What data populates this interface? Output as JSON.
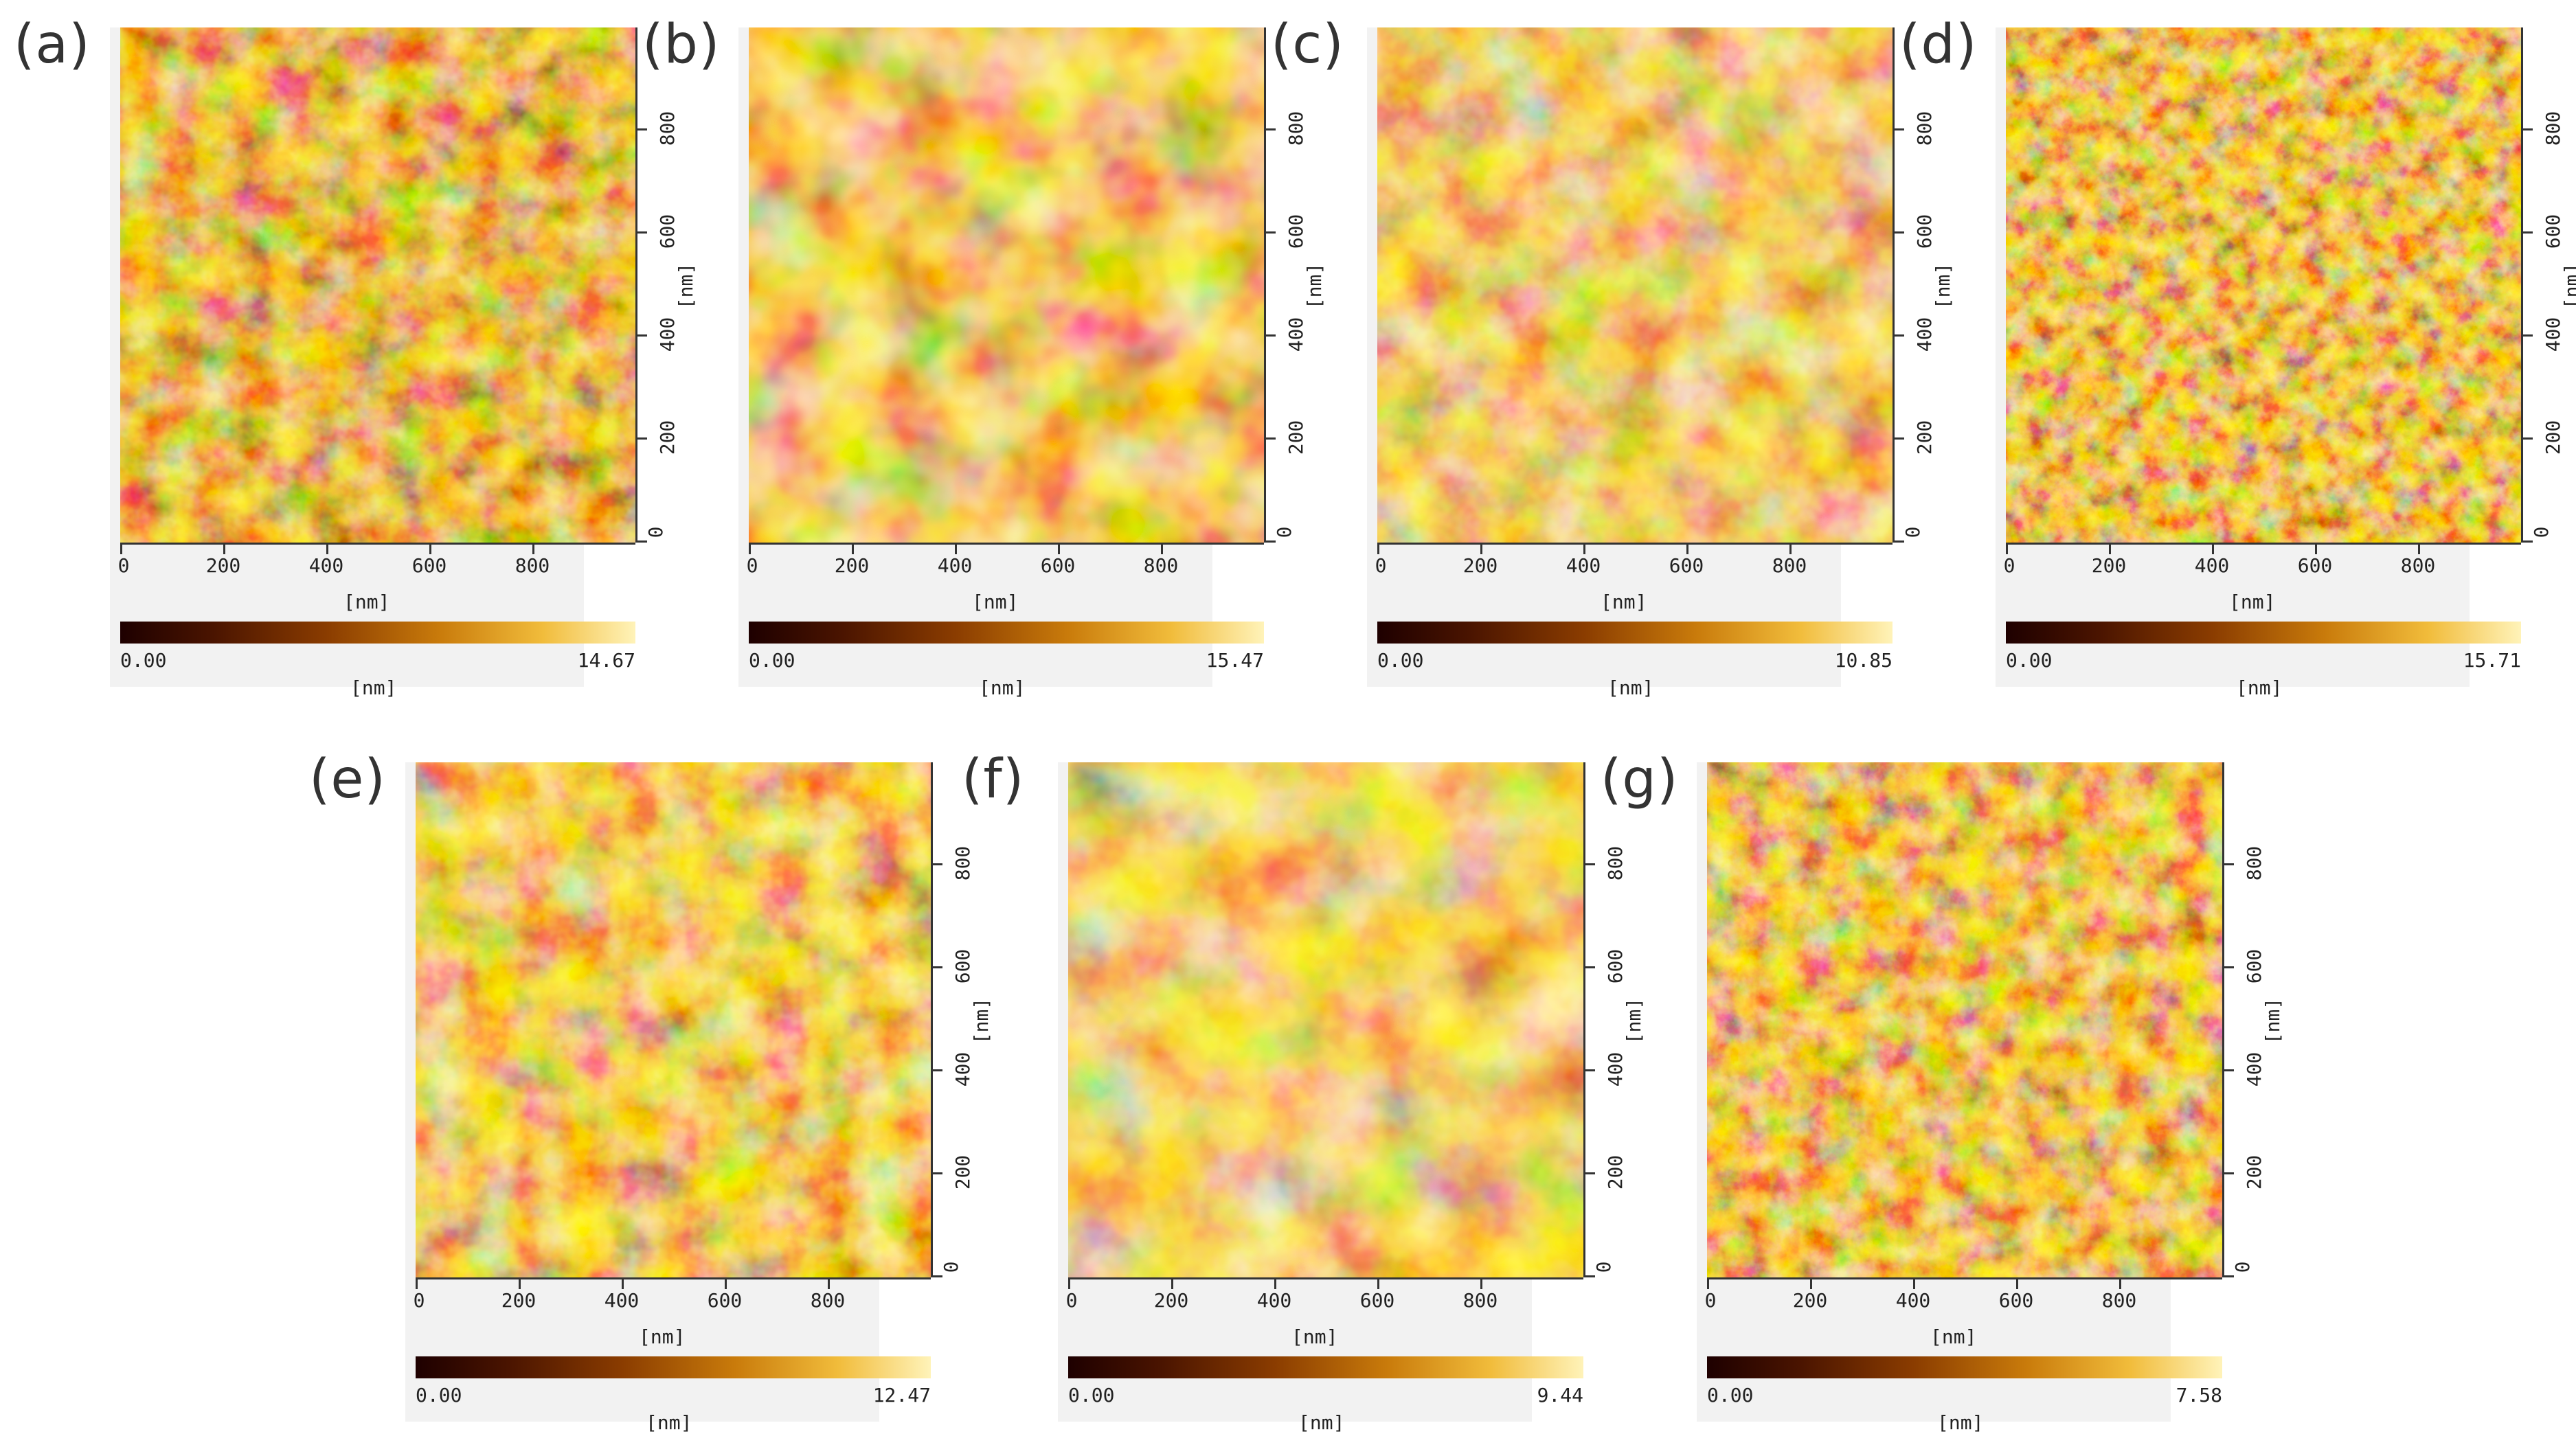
{
  "figure": {
    "panels": [
      {
        "label": "(a)",
        "x_ticks": [
          "0",
          "200",
          "400",
          "600",
          "800"
        ],
        "y_ticks": [
          "0",
          "200",
          "400",
          "600",
          "800"
        ],
        "x_unit": "[nm]",
        "y_unit": "[nm]",
        "scale_min": "0.00",
        "scale_max": "14.67",
        "scale_unit": "[nm]"
      },
      {
        "label": "(b)",
        "x_ticks": [
          "0",
          "200",
          "400",
          "600",
          "800"
        ],
        "y_ticks": [
          "0",
          "200",
          "400",
          "600",
          "800"
        ],
        "x_unit": "[nm]",
        "y_unit": "[nm]",
        "scale_min": "0.00",
        "scale_max": "15.47",
        "scale_unit": "[nm]"
      },
      {
        "label": "(c)",
        "x_ticks": [
          "0",
          "200",
          "400",
          "600",
          "800"
        ],
        "y_ticks": [
          "0",
          "200",
          "400",
          "600",
          "800"
        ],
        "x_unit": "[nm]",
        "y_unit": "[nm]",
        "scale_min": "0.00",
        "scale_max": "10.85",
        "scale_unit": "[nm]"
      },
      {
        "label": "(d)",
        "x_ticks": [
          "0",
          "200",
          "400",
          "600",
          "800"
        ],
        "y_ticks": [
          "0",
          "200",
          "400",
          "600",
          "800"
        ],
        "x_unit": "[nm]",
        "y_unit": "[nm]",
        "scale_min": "0.00",
        "scale_max": "15.71",
        "scale_unit": "[nm]"
      },
      {
        "label": "(e)",
        "x_ticks": [
          "0",
          "200",
          "400",
          "600",
          "800"
        ],
        "y_ticks": [
          "0",
          "200",
          "400",
          "600",
          "800"
        ],
        "x_unit": "[nm]",
        "y_unit": "[nm]",
        "scale_min": "0.00",
        "scale_max": "12.47",
        "scale_unit": "[nm]"
      },
      {
        "label": "(f)",
        "x_ticks": [
          "0",
          "200",
          "400",
          "600",
          "800"
        ],
        "y_ticks": [
          "0",
          "200",
          "400",
          "600",
          "800"
        ],
        "x_unit": "[nm]",
        "y_unit": "[nm]",
        "scale_min": "0.00",
        "scale_max": "9.44",
        "scale_unit": "[nm]"
      },
      {
        "label": "(g)",
        "x_ticks": [
          "0",
          "200",
          "400",
          "600",
          "800"
        ],
        "y_ticks": [
          "0",
          "200",
          "400",
          "600",
          "800"
        ],
        "x_unit": "[nm]",
        "y_unit": "[nm]",
        "scale_min": "0.00",
        "scale_max": "7.58",
        "scale_unit": "[nm]"
      }
    ]
  },
  "colors": {
    "colormap_dark": "#1e0000",
    "colormap_mid": "#c97b0b",
    "colormap_light": "#fff3b9"
  }
}
